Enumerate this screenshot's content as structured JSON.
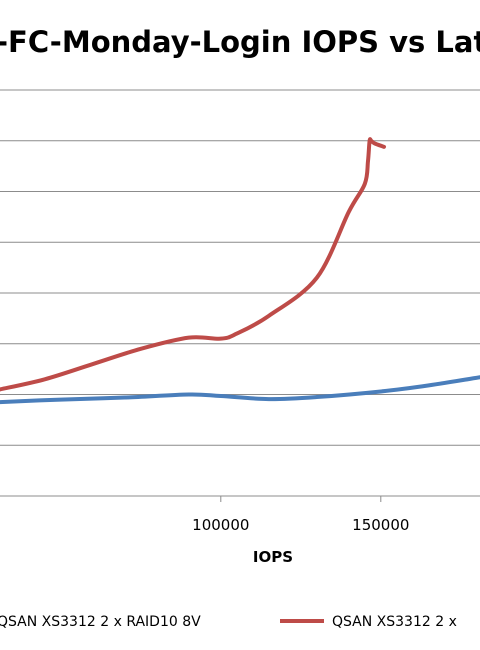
{
  "chart_data": {
    "type": "line",
    "title": "-FC-Monday-Login IOPS vs Late",
    "xlabel": "IOPS",
    "x_ticks": [
      100000,
      150000
    ],
    "x_tick_labels": [
      "100000",
      "150000"
    ],
    "xlim": [
      31000,
      181000
    ],
    "ylim": [
      0,
      8
    ],
    "grid": "horizontal",
    "legend_position": "bottom",
    "colors": {
      "series_0": "#4a7ebb",
      "series_1": "#be4b48",
      "grid": "#8c8c8c"
    },
    "series": [
      {
        "name": "QSAN XS3312 2 x RAID10 8V",
        "x": [
          31000,
          50000,
          70000,
          90000,
          100000,
          115000,
          130000,
          150000,
          165000,
          181000
        ],
        "y": [
          1.85,
          1.9,
          1.94,
          2.0,
          1.97,
          1.91,
          1.95,
          2.06,
          2.18,
          2.34
        ]
      },
      {
        "name": "QSAN XS3312 2 x",
        "x": [
          31000,
          45000,
          60000,
          75000,
          90000,
          100000,
          105000,
          115000,
          130000,
          140000,
          145000,
          146000,
          146500,
          147000,
          148000,
          151000
        ],
        "y": [
          2.1,
          2.3,
          2.6,
          2.9,
          3.12,
          3.1,
          3.2,
          3.55,
          4.3,
          5.6,
          6.15,
          6.6,
          7.0,
          7.0,
          6.95,
          6.88
        ]
      }
    ]
  }
}
